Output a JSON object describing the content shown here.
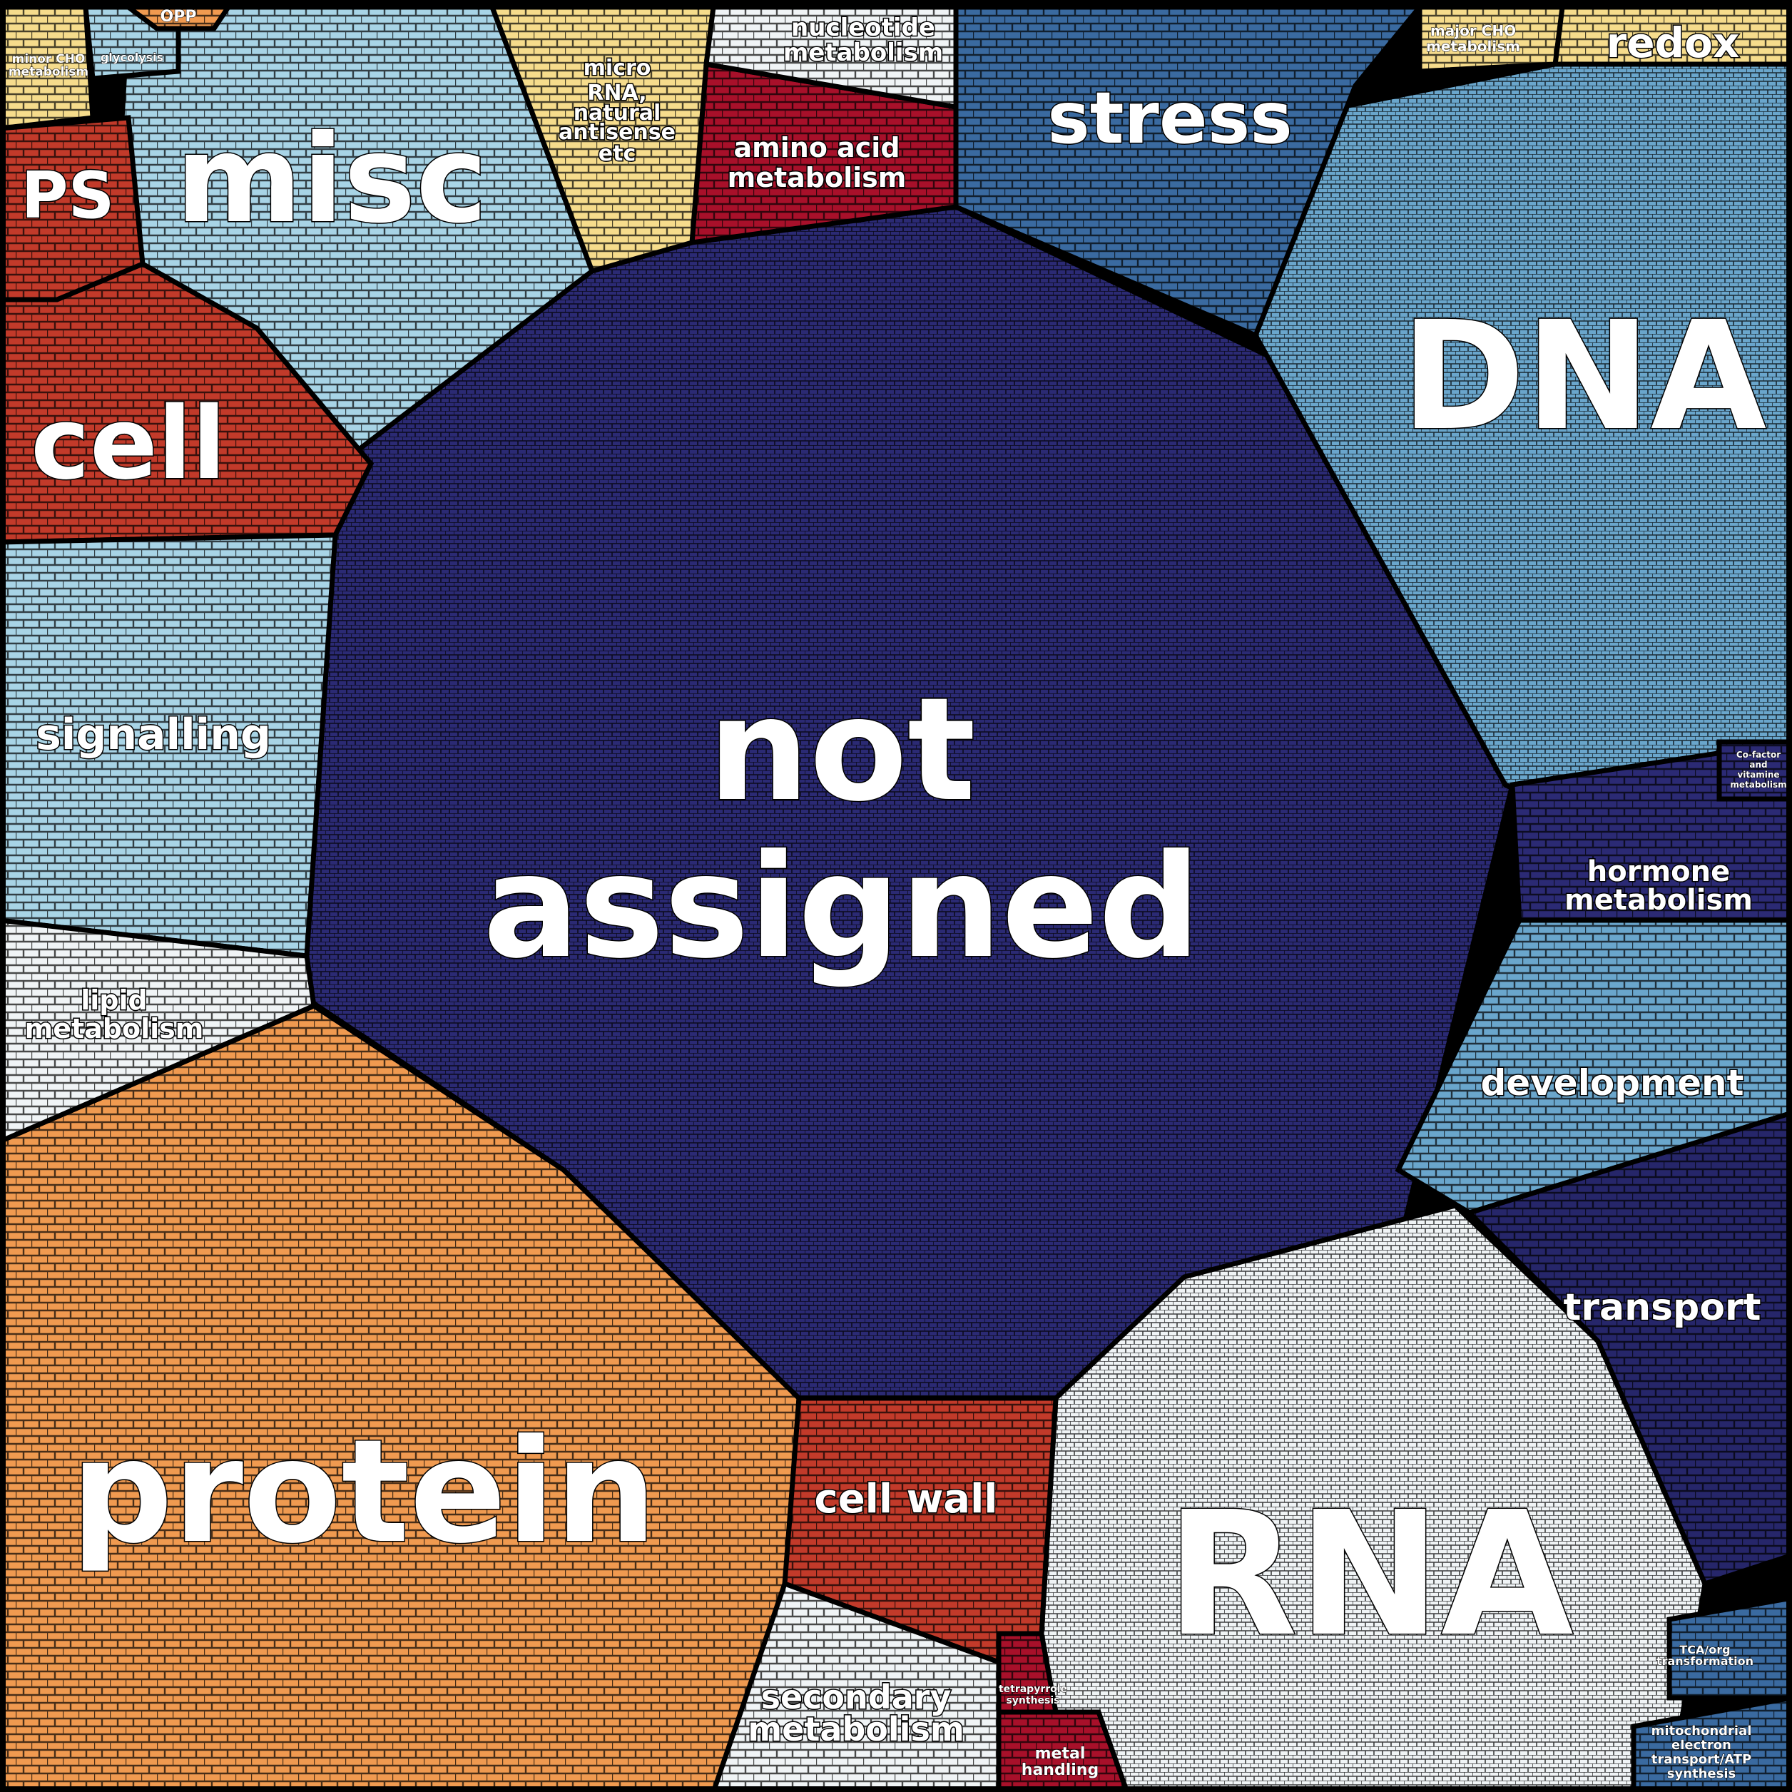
{
  "diagram": {
    "type": "voronoi-treemap",
    "colors": {
      "navy": "#2b2a74",
      "navy_dark": "#26266a",
      "blue_mid": "#3a6aa0",
      "blue_light": "#6aa6cc",
      "cyan_light": "#a8d4e6",
      "white": "#f0f4f6",
      "orange": "#f09a50",
      "orange_light": "#fcb064",
      "red": "#c23a2a",
      "red_dark": "#a8102a",
      "yellow": "#f6dc8c"
    },
    "regions": [
      {
        "id": "not-assigned",
        "lines": [
          "not",
          "assigned"
        ],
        "color": "navy"
      },
      {
        "id": "dna",
        "lines": [
          "DNA"
        ],
        "color": "blue_light"
      },
      {
        "id": "rna",
        "lines": [
          "RNA"
        ],
        "color": "white"
      },
      {
        "id": "protein",
        "lines": [
          "protein"
        ],
        "color": "orange"
      },
      {
        "id": "misc",
        "lines": [
          "misc"
        ],
        "color": "cyan_light"
      },
      {
        "id": "stress",
        "lines": [
          "stress"
        ],
        "color": "blue_mid"
      },
      {
        "id": "cell",
        "lines": [
          "cell"
        ],
        "color": "red"
      },
      {
        "id": "ps",
        "lines": [
          "PS"
        ],
        "color": "red"
      },
      {
        "id": "signalling",
        "lines": [
          "signalling"
        ],
        "color": "cyan_light"
      },
      {
        "id": "lipid-metabolism",
        "lines": [
          "lipid",
          "metabolism"
        ],
        "color": "white"
      },
      {
        "id": "development",
        "lines": [
          "development"
        ],
        "color": "blue_light"
      },
      {
        "id": "transport",
        "lines": [
          "transport"
        ],
        "color": "navy_dark"
      },
      {
        "id": "hormone-metabolism",
        "lines": [
          "hormone",
          "metabolism"
        ],
        "color": "navy"
      },
      {
        "id": "cell-wall",
        "lines": [
          "cell wall"
        ],
        "color": "red"
      },
      {
        "id": "secondary-metabolism",
        "lines": [
          "secondary",
          "metabolism"
        ],
        "color": "white"
      },
      {
        "id": "amino-acid-metabolism",
        "lines": [
          "amino acid",
          "metabolism"
        ],
        "color": "red_dark"
      },
      {
        "id": "micro-rna",
        "lines": [
          "micro",
          "RNA,",
          "natural",
          "antisense",
          "etc"
        ],
        "color": "yellow"
      },
      {
        "id": "nucleotide-metabolism",
        "lines": [
          "nucleotide",
          "metabolism"
        ],
        "color": "white"
      },
      {
        "id": "redox",
        "lines": [
          "redox"
        ],
        "color": "yellow"
      },
      {
        "id": "major-cho-metabolism",
        "lines": [
          "major CHO",
          "metabolism"
        ],
        "color": "yellow"
      },
      {
        "id": "minor-cho-metabolism",
        "lines": [
          "minor CHO",
          "metabolism"
        ],
        "color": "yellow"
      },
      {
        "id": "glycolysis",
        "lines": [
          "glycolysis"
        ],
        "color": "cyan_light"
      },
      {
        "id": "opp",
        "lines": [
          "OPP"
        ],
        "color": "orange"
      },
      {
        "id": "tetrapyrrole-synthesis",
        "lines": [
          "tetrapyrrole",
          "synthesis"
        ],
        "color": "red_dark"
      },
      {
        "id": "metal-handling",
        "lines": [
          "metal",
          "handling"
        ],
        "color": "red_dark"
      },
      {
        "id": "mitochondrial-electron-transport",
        "lines": [
          "mitochondrial",
          "electron",
          "transport/ATP",
          "synthesis"
        ],
        "color": "blue_mid"
      },
      {
        "id": "tca-org-transformation",
        "lines": [
          "TCA/org",
          "transformation"
        ],
        "color": "blue_mid"
      },
      {
        "id": "co-factor-vitamine-metabolism",
        "lines": [
          "Co-factor",
          "and",
          "vitamine",
          "metabolism"
        ],
        "color": "navy"
      }
    ]
  }
}
